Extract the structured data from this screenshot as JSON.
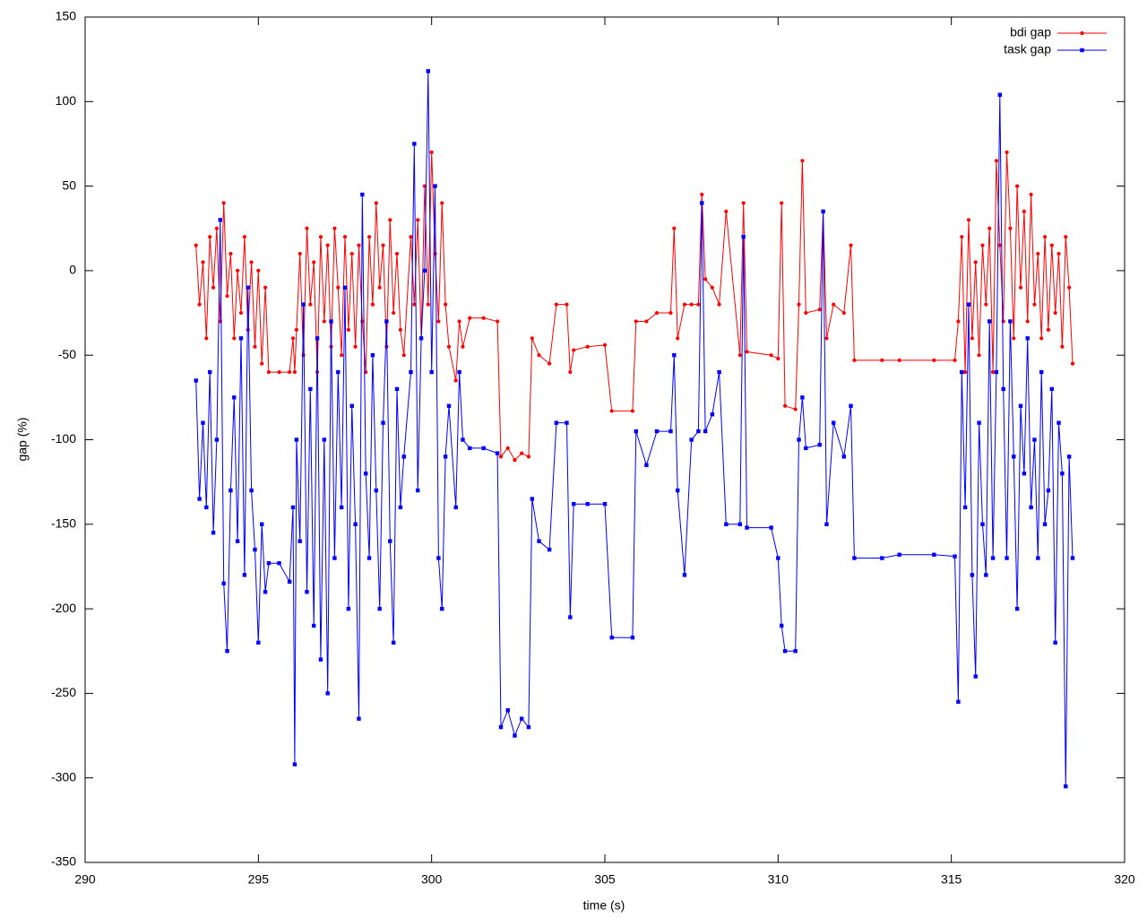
{
  "chart_data": {
    "type": "line",
    "x_label": "time (s)",
    "y_label": "gap (%)",
    "xlim": [
      290,
      320
    ],
    "xticks": [
      290,
      295,
      300,
      305,
      310,
      315,
      320
    ],
    "ylim": [
      -350,
      150
    ],
    "yticks": [
      -350,
      -300,
      -250,
      -200,
      -150,
      -100,
      -50,
      0,
      50,
      100,
      150
    ],
    "legend": "top-right",
    "grid": false,
    "x": [
      293.2,
      293.3,
      293.4,
      293.5,
      293.6,
      293.7,
      293.8,
      293.9,
      294.0,
      294.1,
      294.2,
      294.3,
      294.4,
      294.5,
      294.6,
      294.7,
      294.8,
      294.9,
      295.0,
      295.1,
      295.2,
      295.3,
      295.6,
      295.9,
      296.0,
      296.05,
      296.1,
      296.2,
      296.3,
      296.4,
      296.5,
      296.6,
      296.7,
      296.8,
      296.9,
      297.0,
      297.1,
      297.2,
      297.3,
      297.4,
      297.5,
      297.6,
      297.7,
      297.8,
      297.9,
      298.0,
      298.1,
      298.2,
      298.3,
      298.4,
      298.5,
      298.6,
      298.7,
      298.8,
      298.9,
      299.0,
      299.1,
      299.2,
      299.4,
      299.5,
      299.6,
      299.7,
      299.8,
      299.9,
      300.0,
      300.1,
      300.2,
      300.3,
      300.4,
      300.5,
      300.7,
      300.8,
      300.9,
      301.1,
      301.5,
      301.9,
      302.0,
      302.2,
      302.4,
      302.6,
      302.8,
      302.9,
      303.1,
      303.4,
      303.6,
      303.9,
      304.0,
      304.1,
      304.5,
      305.0,
      305.2,
      305.8,
      305.9,
      306.2,
      306.5,
      306.9,
      307.0,
      307.1,
      307.3,
      307.5,
      307.7,
      307.8,
      307.9,
      308.1,
      308.3,
      308.5,
      308.9,
      309.0,
      309.1,
      309.8,
      310.0,
      310.1,
      310.2,
      310.5,
      310.6,
      310.7,
      310.8,
      311.2,
      311.3,
      311.4,
      311.6,
      311.9,
      312.1,
      312.2,
      313.0,
      313.5,
      314.5,
      315.1,
      315.2,
      315.3,
      315.4,
      315.5,
      315.6,
      315.7,
      315.8,
      315.9,
      316.0,
      316.1,
      316.2,
      316.3,
      316.4,
      316.5,
      316.6,
      316.7,
      316.8,
      316.9,
      317.0,
      317.1,
      317.2,
      317.3,
      317.4,
      317.5,
      317.6,
      317.7,
      317.8,
      317.9,
      318.0,
      318.1,
      318.2,
      318.3,
      318.4,
      318.5
    ],
    "series": [
      {
        "name": "bdi gap",
        "color": "#ff0000",
        "marker": "circle",
        "values": [
          15,
          -20,
          5,
          -40,
          20,
          -10,
          25,
          -30,
          40,
          -15,
          10,
          -40,
          0,
          -25,
          20,
          -35,
          5,
          -45,
          0,
          -55,
          -10,
          -60,
          -60,
          -60,
          -40,
          -60,
          -35,
          10,
          -50,
          25,
          -20,
          5,
          -60,
          20,
          -30,
          15,
          -45,
          25,
          -10,
          -50,
          20,
          -35,
          10,
          -45,
          15,
          -30,
          -60,
          20,
          -20,
          40,
          -10,
          15,
          -45,
          30,
          -25,
          10,
          -35,
          -50,
          20,
          -20,
          30,
          -40,
          50,
          -20,
          70,
          10,
          -30,
          40,
          -20,
          -45,
          -65,
          -30,
          -45,
          -28,
          -28,
          -30,
          -110,
          -105,
          -112,
          -108,
          -110,
          -40,
          -50,
          -55,
          -20,
          -20,
          -60,
          -47,
          -45,
          -44,
          -83,
          -83,
          -30,
          -30,
          -25,
          -25,
          25,
          -40,
          -20,
          -20,
          -20,
          45,
          -5,
          -10,
          -20,
          35,
          -50,
          40,
          -48,
          -50,
          -52,
          40,
          -80,
          -82,
          -20,
          65,
          -25,
          -23,
          35,
          -40,
          -20,
          -25,
          15,
          -53,
          -53,
          -53,
          -53,
          -53,
          -30,
          20,
          -60,
          30,
          -40,
          5,
          -50,
          15,
          -20,
          25,
          -60,
          65,
          15,
          -30,
          70,
          25,
          -40,
          50,
          -10,
          35,
          -30,
          45,
          -20,
          10,
          -40,
          20,
          -35,
          15,
          -25,
          10,
          -45,
          20,
          -10,
          -55
        ]
      },
      {
        "name": "task gap",
        "color": "#0000ff",
        "marker": "square",
        "values": [
          -65,
          -135,
          -90,
          -140,
          -60,
          -155,
          -100,
          30,
          -185,
          -225,
          -130,
          -75,
          -160,
          -40,
          -180,
          -10,
          -130,
          -165,
          -220,
          -150,
          -190,
          -173,
          -173,
          -184,
          -140,
          -292,
          -100,
          -160,
          -20,
          -190,
          -70,
          -210,
          -40,
          -230,
          -100,
          -250,
          -30,
          -170,
          -60,
          -140,
          -10,
          -200,
          -80,
          -150,
          -265,
          45,
          -120,
          -170,
          -50,
          -130,
          -200,
          -90,
          -30,
          -160,
          -220,
          -70,
          -140,
          -110,
          -60,
          75,
          -130,
          -40,
          0,
          118,
          -60,
          50,
          -170,
          -200,
          -110,
          -80,
          -140,
          -60,
          -100,
          -105,
          -105,
          -108,
          -270,
          -260,
          -275,
          -265,
          -270,
          -135,
          -160,
          -165,
          -90,
          -90,
          -205,
          -138,
          -138,
          -138,
          -217,
          -217,
          -95,
          -115,
          -95,
          -95,
          -50,
          -130,
          -180,
          -100,
          -95,
          40,
          -95,
          -85,
          -60,
          -150,
          -150,
          20,
          -152,
          -152,
          -170,
          -210,
          -225,
          -225,
          -100,
          -75,
          -105,
          -103,
          35,
          -150,
          -90,
          -110,
          -80,
          -170,
          -170,
          -168,
          -168,
          -169,
          -255,
          -60,
          -140,
          -20,
          -180,
          -240,
          -90,
          -150,
          -180,
          -30,
          -170,
          -60,
          104,
          -70,
          -170,
          -30,
          -110,
          -200,
          -80,
          -120,
          -40,
          -140,
          -100,
          -170,
          -60,
          -150,
          -130,
          -70,
          -220,
          -90,
          -120,
          -305,
          -110,
          -170
        ]
      }
    ]
  }
}
